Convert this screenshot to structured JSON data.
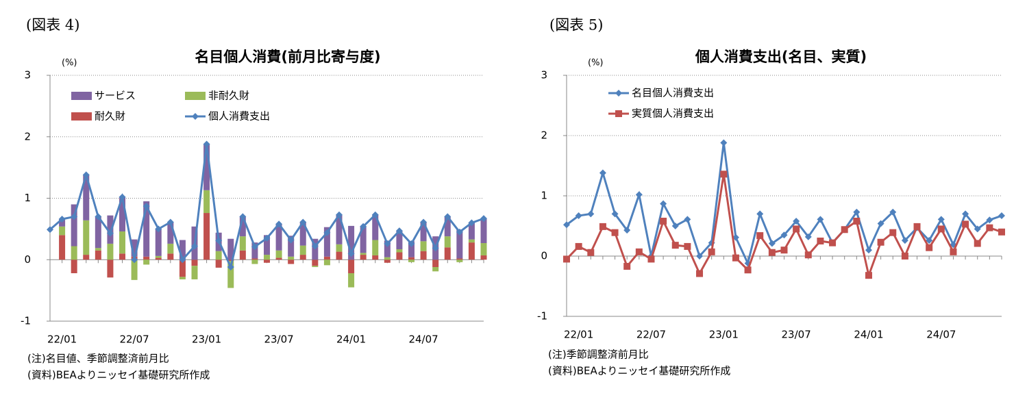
{
  "chart_data": [
    {
      "type": "bar",
      "figure_label": "(図表 4)",
      "title": "名目個人消費(前月比寄与度)",
      "y_unit": "(%)",
      "categories": [
        null,
        "22/01",
        null,
        null,
        null,
        null,
        null,
        "22/07",
        null,
        null,
        null,
        null,
        null,
        "23/01",
        null,
        null,
        null,
        null,
        null,
        "23/07",
        null,
        null,
        null,
        null,
        null,
        "24/01",
        null,
        null,
        null,
        null,
        null,
        "24/07",
        null,
        null,
        null,
        null,
        null
      ],
      "series": [
        {
          "name": "サービス",
          "color": "#8064a2",
          "values": [
            null,
            0.12,
            0.68,
            0.74,
            0.51,
            0.46,
            0.56,
            0.28,
            0.9,
            0.44,
            0.35,
            0.32,
            0.54,
            0.75,
            0.3,
            0.34,
            0.32,
            0.26,
            0.32,
            0.43,
            0.34,
            0.38,
            0.34,
            0.48,
            0.48,
            0.55,
            0.43,
            0.41,
            0.27,
            0.3,
            0.26,
            0.31,
            0.38,
            0.32,
            0.47,
            0.27,
            0.4
          ]
        },
        {
          "name": "非耐久財",
          "color": "#9bbb59",
          "values": [
            null,
            0.14,
            0.22,
            0.56,
            0.04,
            0.26,
            0.36,
            -0.33,
            -0.08,
            0.03,
            0.16,
            -0.04,
            -0.22,
            0.37,
            0.14,
            -0.44,
            0.23,
            -0.07,
            0.08,
            0.12,
            0.05,
            0.15,
            -0.02,
            -0.09,
            0.12,
            -0.23,
            0.03,
            0.25,
            0.04,
            0.05,
            -0.04,
            0.16,
            -0.07,
            0.18,
            -0.04,
            0.05,
            0.2
          ]
        },
        {
          "name": "耐久財",
          "color": "#c0504d",
          "values": [
            null,
            0.4,
            -0.22,
            0.08,
            0.15,
            -0.29,
            0.1,
            0.05,
            0.05,
            0.03,
            0.1,
            -0.28,
            -0.1,
            0.76,
            -0.13,
            -0.02,
            0.15,
            0.02,
            -0.05,
            0.03,
            -0.07,
            0.08,
            -0.1,
            0.05,
            0.13,
            -0.22,
            0.08,
            0.07,
            -0.05,
            0.12,
            0.04,
            0.14,
            -0.12,
            0.2,
            0.02,
            0.28,
            0.07
          ]
        },
        {
          "name": "個人消費支出",
          "color": "#4f81bd",
          "type": "line",
          "marker": "diamond",
          "values": [
            0.49,
            0.66,
            0.7,
            1.38,
            0.7,
            0.43,
            1.02,
            0.0,
            0.87,
            0.5,
            0.61,
            0.0,
            0.22,
            1.88,
            0.31,
            -0.12,
            0.7,
            0.21,
            0.35,
            0.58,
            0.32,
            0.61,
            0.22,
            0.44,
            0.73,
            0.1,
            0.54,
            0.73,
            0.26,
            0.47,
            0.26,
            0.61,
            0.19,
            0.7,
            0.45,
            0.6,
            0.67
          ]
        }
      ],
      "ylim": [
        -1,
        3
      ],
      "yticks": [
        -1,
        0,
        1,
        2,
        3
      ],
      "grid": true,
      "notes": [
        "(注)名目値、季節調整済前月比",
        "(資料)BEAよりニッセイ基礎研究所作成"
      ]
    },
    {
      "type": "line",
      "figure_label": "(図表 5)",
      "title": "個人消費支出(名目、実質)",
      "y_unit": "(%)",
      "categories": [
        null,
        "22/01",
        null,
        null,
        null,
        null,
        null,
        "22/07",
        null,
        null,
        null,
        null,
        null,
        "23/01",
        null,
        null,
        null,
        null,
        null,
        "23/07",
        null,
        null,
        null,
        null,
        null,
        "24/01",
        null,
        null,
        null,
        null,
        null,
        "24/07",
        null,
        null,
        null,
        null,
        null
      ],
      "series": [
        {
          "name": "名目個人消費支出",
          "color": "#4f81bd",
          "marker": "diamond",
          "values": [
            0.52,
            0.67,
            0.7,
            1.38,
            0.7,
            0.43,
            1.02,
            0.0,
            0.87,
            0.5,
            0.61,
            0.0,
            0.22,
            1.88,
            0.31,
            -0.12,
            0.7,
            0.21,
            0.35,
            0.58,
            0.32,
            0.61,
            0.22,
            0.44,
            0.73,
            0.1,
            0.54,
            0.73,
            0.26,
            0.47,
            0.26,
            0.61,
            0.19,
            0.7,
            0.45,
            0.6,
            0.67
          ]
        },
        {
          "name": "実質個人消費支出",
          "color": "#c0504d",
          "marker": "square",
          "values": [
            -0.05,
            0.16,
            0.06,
            0.49,
            0.39,
            -0.17,
            0.07,
            -0.05,
            0.58,
            0.18,
            0.16,
            -0.29,
            0.07,
            1.36,
            -0.03,
            -0.23,
            0.34,
            0.06,
            0.1,
            0.45,
            0.02,
            0.25,
            0.22,
            0.44,
            0.58,
            -0.32,
            0.23,
            0.39,
            0.0,
            0.49,
            0.14,
            0.45,
            0.07,
            0.53,
            0.21,
            0.47,
            0.4
          ]
        }
      ],
      "ylim": [
        -1,
        3
      ],
      "yticks": [
        -1,
        0,
        1,
        2,
        3
      ],
      "grid": true,
      "notes": [
        "(注)季節調整済前月比",
        "(資料)BEAよりニッセイ基礎研究所作成"
      ]
    }
  ]
}
